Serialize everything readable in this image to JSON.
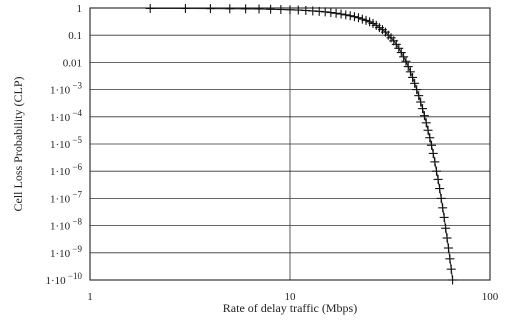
{
  "chart_data": {
    "type": "scatter",
    "x_scale": "log",
    "y_scale": "log",
    "xlim": [
      1,
      100
    ],
    "ylim": [
      1e-10,
      1
    ],
    "grid": true,
    "xlabel": "Rate of delay traffic (Mbps)",
    "ylabel": "Cell Loss Probability (CLP)",
    "x_ticks": [
      {
        "value": 1,
        "label": "1"
      },
      {
        "value": 10,
        "label": "10"
      },
      {
        "value": 100,
        "label": "100"
      }
    ],
    "y_ticks": [
      {
        "value": 1,
        "label": "1",
        "exp": ""
      },
      {
        "value": 0.1,
        "label": "0.1",
        "exp": ""
      },
      {
        "value": 0.01,
        "label": "0.01",
        "exp": ""
      },
      {
        "value": 0.001,
        "label": "1·10",
        "exp": "−3"
      },
      {
        "value": 0.0001,
        "label": "1·10",
        "exp": "−4"
      },
      {
        "value": 1e-05,
        "label": "1·10",
        "exp": "−5"
      },
      {
        "value": 1e-06,
        "label": "1·10",
        "exp": "−6"
      },
      {
        "value": 1e-07,
        "label": "1·10",
        "exp": "−7"
      },
      {
        "value": 1e-08,
        "label": "1·10",
        "exp": "−8"
      },
      {
        "value": 1e-09,
        "label": "1·10",
        "exp": "−9"
      },
      {
        "value": 1e-10,
        "label": "1·10",
        "exp": "−10"
      }
    ],
    "series": [
      {
        "marker": "+",
        "color": "#111111",
        "points": [
          [
            2,
            0.96
          ],
          [
            3,
            0.96
          ],
          [
            4,
            0.95
          ],
          [
            5,
            0.94
          ],
          [
            6,
            0.93
          ],
          [
            7,
            0.92
          ],
          [
            8,
            0.9
          ],
          [
            9,
            0.88
          ],
          [
            10,
            0.86
          ],
          [
            11,
            0.84
          ],
          [
            12,
            0.81
          ],
          [
            13,
            0.78
          ],
          [
            14,
            0.75
          ],
          [
            15,
            0.72
          ],
          [
            16,
            0.68
          ],
          [
            17,
            0.64
          ],
          [
            18,
            0.6
          ],
          [
            19,
            0.56
          ],
          [
            20,
            0.52
          ],
          [
            21,
            0.48
          ],
          [
            22,
            0.44
          ],
          [
            23,
            0.39
          ],
          [
            24,
            0.35
          ],
          [
            25,
            0.31
          ],
          [
            26,
            0.27
          ],
          [
            27,
            0.23
          ],
          [
            28,
            0.19
          ],
          [
            29,
            0.16
          ],
          [
            30,
            0.13
          ],
          [
            31,
            0.1
          ],
          [
            32,
            0.08
          ],
          [
            33,
            0.062
          ],
          [
            34,
            0.046
          ],
          [
            35,
            0.033
          ],
          [
            36,
            0.023
          ],
          [
            37,
            0.016
          ],
          [
            38,
            0.011
          ],
          [
            39,
            0.007
          ],
          [
            40,
            0.0045
          ],
          [
            41,
            0.0028
          ],
          [
            42,
            0.0017
          ],
          [
            43,
            0.001
          ],
          [
            44,
            0.0006
          ],
          [
            45,
            0.00035
          ],
          [
            46,
            0.0002
          ],
          [
            47,
            0.00011
          ],
          [
            48,
            6e-05
          ],
          [
            49,
            3.2e-05
          ],
          [
            50,
            1.7e-05
          ],
          [
            51,
            9e-06
          ],
          [
            52,
            4.5e-06
          ],
          [
            53,
            2.2e-06
          ],
          [
            54,
            1e-06
          ],
          [
            55,
            5e-07
          ],
          [
            56,
            2.3e-07
          ],
          [
            57,
            1e-07
          ],
          [
            58,
            4.5e-08
          ],
          [
            59,
            2e-08
          ],
          [
            60,
            8e-09
          ],
          [
            61,
            3.5e-09
          ],
          [
            62,
            1.5e-09
          ],
          [
            63,
            6e-10
          ],
          [
            64,
            2.5e-10
          ],
          [
            65,
            1e-10
          ]
        ]
      }
    ]
  }
}
